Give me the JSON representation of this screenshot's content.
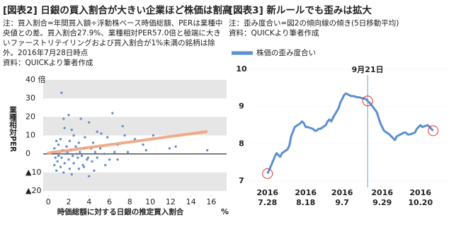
{
  "chart_data": [
    {
      "type": "scatter",
      "title": "[図表2] 日銀の買入割合が大きい企業ほど株価は割高",
      "notes": [
        "注：買入割合=年間買入額÷浮動株ベース時価総額、PERは業種中",
        "央値との差。買入割合27.9%、業種相対PER57.0倍と極端に大き",
        "いファーストリテイリングおよび買入割合が1%未満の銘柄は除",
        "外。2016年7月28日時点",
        "資料：QUICKより筆者作成"
      ],
      "x_label": "時価総額に対する日銀の推定買入割合",
      "x_unit": "%",
      "y_label": "業種相対PER",
      "xlim": [
        -0.5,
        17.5
      ],
      "xticks": [
        0,
        2,
        4,
        6,
        8,
        10,
        12,
        14,
        16
      ],
      "ylim": [
        -23,
        43
      ],
      "yticks": [
        {
          "value": 40,
          "label": "40 倍"
        },
        30,
        20,
        10,
        0,
        {
          "value": -10,
          "label": "▲10"
        },
        {
          "value": -20,
          "label": "▲20"
        }
      ],
      "bands": [
        [
          30,
          40
        ],
        [
          10,
          20
        ],
        [
          -20,
          -10
        ]
      ],
      "series": [
        {
          "color": "#6f8fc6",
          "x": [
            1.3,
            2,
            1.5,
            3.2,
            6.3,
            4,
            7.3,
            1.6,
            2.3,
            4.8,
            5.2,
            7.5,
            2.5,
            3.6,
            5.8,
            8.5,
            10.3,
            1.2,
            0.8,
            2.1,
            3,
            4.4,
            6.8,
            9.3,
            12.5,
            9.6,
            1,
            1.8,
            2.7,
            3.5,
            4.2,
            5.1,
            0.6,
            1.4,
            2.2,
            3.1,
            4.6,
            5.5,
            6.5,
            7.8,
            0.5,
            1.1,
            1.7,
            2.4,
            3.3,
            0.7,
            1.3,
            2,
            2.9,
            3.8,
            4.8,
            6,
            0.9,
            1.6,
            2.5,
            3.4,
            4.3,
            5.6,
            1.2,
            2.1,
            3,
            0.8,
            1.5,
            2.3,
            4,
            3.5,
            15.6,
            6.8,
            11.9,
            1,
            1.9,
            2.8,
            0.6,
            3.9,
            4.5
          ],
          "y": [
            33,
            21,
            19,
            19,
            22,
            17,
            15,
            14,
            13,
            12,
            11,
            10,
            10,
            9,
            9,
            8,
            10,
            8,
            7,
            7,
            6,
            6,
            5,
            5,
            4,
            2,
            5,
            4,
            4,
            3,
            3,
            3,
            3,
            2,
            2,
            1,
            1,
            0,
            1,
            1,
            1,
            0,
            0,
            -1,
            -1,
            -2,
            -2,
            -3,
            -2,
            -3,
            -2,
            -3,
            -4,
            -5,
            -5,
            -6,
            -4,
            -6,
            -7,
            -8,
            -8,
            -9,
            -10,
            -11,
            -12,
            -7,
            2,
            -3,
            3,
            -1,
            1,
            0,
            -6,
            -2,
            -9
          ]
        }
      ],
      "trend": {
        "color": "#f0a27e",
        "x": [
          0,
          15.5
        ],
        "y": [
          0.5,
          12
        ]
      }
    },
    {
      "type": "line",
      "title": "[図表3] 新ルールでも歪みは拡大",
      "notes": [
        "注：歪み度合い=図2の傾向線の傾き(5日移動平均)",
        "資料：QUICKより筆者作成"
      ],
      "x": [
        "2016-07-28",
        "2016-07-29",
        "2016-08-01",
        "2016-08-02",
        "2016-08-03",
        "2016-08-04",
        "2016-08-05",
        "2016-08-08",
        "2016-08-09",
        "2016-08-10",
        "2016-08-12",
        "2016-08-15",
        "2016-08-16",
        "2016-08-17",
        "2016-08-18",
        "2016-08-19",
        "2016-08-22",
        "2016-08-23",
        "2016-08-24",
        "2016-08-25",
        "2016-08-26",
        "2016-08-29",
        "2016-08-30",
        "2016-08-31",
        "2016-09-01",
        "2016-09-02",
        "2016-09-05",
        "2016-09-06",
        "2016-09-07",
        "2016-09-08",
        "2016-09-09",
        "2016-09-12",
        "2016-09-13",
        "2016-09-14",
        "2016-09-15",
        "2016-09-16",
        "2016-09-20",
        "2016-09-21",
        "2016-09-23",
        "2016-09-26",
        "2016-09-27",
        "2016-09-28",
        "2016-09-29",
        "2016-09-30",
        "2016-10-03",
        "2016-10-04",
        "2016-10-05",
        "2016-10-06",
        "2016-10-07",
        "2016-10-11",
        "2016-10-12",
        "2016-10-13",
        "2016-10-14",
        "2016-10-17",
        "2016-10-18",
        "2016-10-19",
        "2016-10-20",
        "2016-10-21",
        "2016-10-24",
        "2016-10-25",
        "2016-10-26",
        "2016-10-27"
      ],
      "series": [
        {
          "name": "株価の歪み度合い",
          "color": "#5b8fd0",
          "values": [
            7.2,
            7.3,
            7.65,
            7.75,
            7.7,
            7.65,
            7.75,
            7.85,
            7.95,
            8.2,
            8.45,
            8.55,
            8.6,
            8.55,
            8.45,
            8.45,
            8.4,
            8.35,
            8.35,
            8.4,
            8.4,
            8.5,
            8.6,
            8.65,
            8.6,
            8.7,
            8.95,
            9.1,
            9.2,
            9.3,
            9.35,
            9.28,
            9.28,
            9.27,
            9.25,
            9.25,
            9.2,
            9.15,
            9.05,
            8.85,
            8.7,
            8.55,
            8.45,
            8.35,
            8.25,
            8.2,
            8.15,
            8.1,
            8.2,
            8.3,
            8.3,
            8.25,
            8.25,
            8.3,
            8.4,
            8.45,
            8.5,
            8.45,
            8.5,
            8.45,
            8.4,
            8.35
          ]
        }
      ],
      "xlim": [
        "2016-07-18",
        "2016-11-07"
      ],
      "xticks": [
        {
          "value": "2016-07-28",
          "label": [
            "2016",
            "7.28"
          ]
        },
        {
          "value": "2016-08-18",
          "label": [
            "2016",
            "8.18"
          ]
        },
        {
          "value": "2016-09-07",
          "label": [
            "2016",
            "9.7"
          ]
        },
        {
          "value": "2016-09-29",
          "label": [
            "2016",
            "9.29"
          ]
        },
        {
          "value": "2016-10-20",
          "label": [
            "2016",
            "10.20"
          ]
        }
      ],
      "ylim": [
        6.83,
        10.15
      ],
      "yticks": [
        7,
        8,
        9,
        10
      ],
      "annotation": {
        "x": "2016-09-21",
        "label": "9月21日",
        "color": "#5ba7d8"
      },
      "highlight_indices": [
        0,
        37,
        61
      ],
      "highlight_color": "#e03030"
    }
  ]
}
